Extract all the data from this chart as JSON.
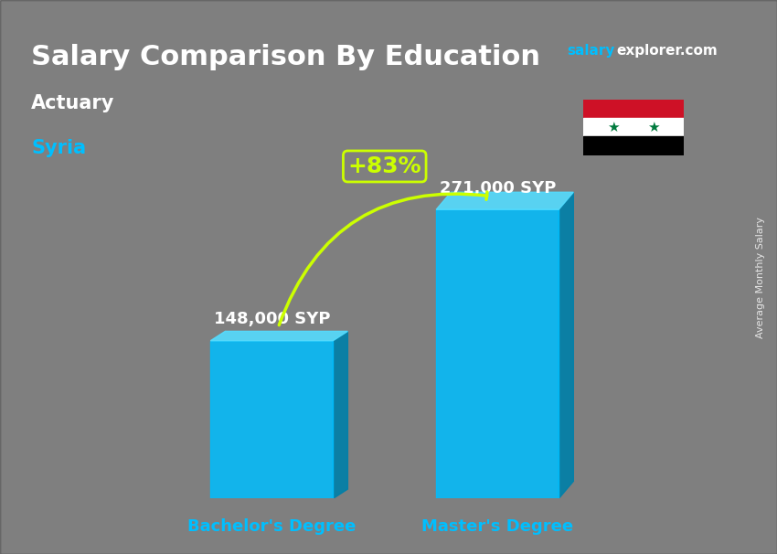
{
  "title_main": "Salary Comparison By Education",
  "title_salary": "salary",
  "title_explorer": "explorer.com",
  "subtitle_job": "Actuary",
  "subtitle_country": "Syria",
  "categories": [
    "Bachelor's Degree",
    "Master's Degree"
  ],
  "values": [
    148000,
    271000
  ],
  "value_labels": [
    "148,000 SYP",
    "271,000 SYP"
  ],
  "pct_change": "+83%",
  "bar_color_main": "#00BFFF",
  "bar_color_light": "#87EEFF",
  "bar_color_dark": "#0099CC",
  "bar_color_side": "#006699",
  "ylabel_rotated": "Average Monthly Salary",
  "bg_color": "#1a1a2e",
  "title_color": "#ffffff",
  "subtitle_job_color": "#ffffff",
  "subtitle_country_color": "#00BFFF",
  "bar_label_color": "#ffffff",
  "xticklabel_color": "#00BFFF",
  "pct_color": "#CCFF00",
  "salary_color": "#00BFFF",
  "explorer_color": "#ffffff"
}
